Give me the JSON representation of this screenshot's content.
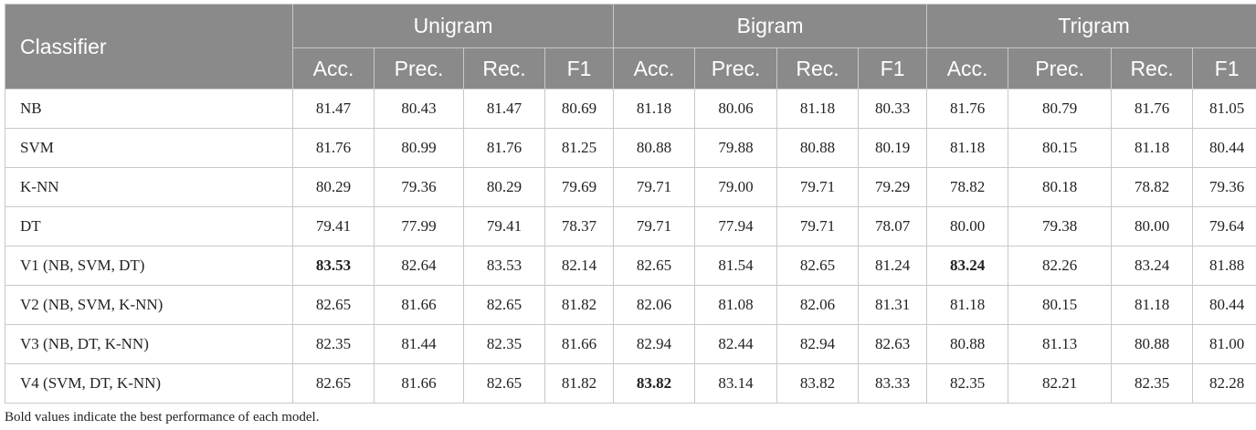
{
  "table": {
    "header_classifier": "Classifier",
    "groups": [
      "Unigram",
      "Bigram",
      "Trigram"
    ],
    "metrics": [
      "Acc.",
      "Prec.",
      "Rec.",
      "F1"
    ],
    "rows": [
      {
        "name": "NB",
        "values": [
          "81.47",
          "80.43",
          "81.47",
          "80.69",
          "81.18",
          "80.06",
          "81.18",
          "80.33",
          "81.76",
          "80.79",
          "81.76",
          "81.05"
        ]
      },
      {
        "name": "SVM",
        "values": [
          "81.76",
          "80.99",
          "81.76",
          "81.25",
          "80.88",
          "79.88",
          "80.88",
          "80.19",
          "81.18",
          "80.15",
          "81.18",
          "80.44"
        ]
      },
      {
        "name": "K-NN",
        "values": [
          "80.29",
          "79.36",
          "80.29",
          "79.69",
          "79.71",
          "79.00",
          "79.71",
          "79.29",
          "78.82",
          "80.18",
          "78.82",
          "79.36"
        ]
      },
      {
        "name": "DT",
        "values": [
          "79.41",
          "77.99",
          "79.41",
          "78.37",
          "79.71",
          "77.94",
          "79.71",
          "78.07",
          "80.00",
          "79.38",
          "80.00",
          "79.64"
        ]
      },
      {
        "name": "V1 (NB, SVM, DT)",
        "values": [
          "83.53",
          "82.64",
          "83.53",
          "82.14",
          "82.65",
          "81.54",
          "82.65",
          "81.24",
          "83.24",
          "82.26",
          "83.24",
          "81.88"
        ],
        "bold": [
          0,
          8
        ]
      },
      {
        "name": "V2 (NB, SVM, K-NN)",
        "values": [
          "82.65",
          "81.66",
          "82.65",
          "81.82",
          "82.06",
          "81.08",
          "82.06",
          "81.31",
          "81.18",
          "80.15",
          "81.18",
          "80.44"
        ]
      },
      {
        "name": "V3 (NB, DT, K-NN)",
        "values": [
          "82.35",
          "81.44",
          "82.35",
          "81.66",
          "82.94",
          "82.44",
          "82.94",
          "82.63",
          "80.88",
          "81.13",
          "80.88",
          "81.00"
        ]
      },
      {
        "name": "V4 (SVM, DT, K-NN)",
        "values": [
          "82.65",
          "81.66",
          "82.65",
          "81.82",
          "83.82",
          "83.14",
          "83.82",
          "83.33",
          "82.35",
          "82.21",
          "82.35",
          "82.28"
        ],
        "bold": [
          4
        ]
      }
    ]
  },
  "footnote": "Bold values indicate the best performance of each model.",
  "colors": {
    "header_bg": "#8a8a8a",
    "header_text": "#ffffff",
    "border": "#c8c8c8"
  }
}
